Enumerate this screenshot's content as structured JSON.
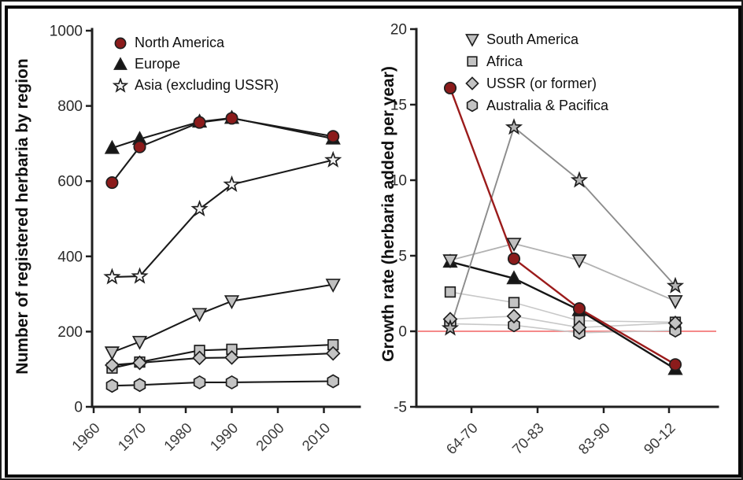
{
  "figure": {
    "background": "#ffffff",
    "frame_color": "#070707"
  },
  "colors": {
    "axis": "#1f1f1f",
    "tick_label": "#2a2a2a",
    "x_tick_label": "#3a3a3a",
    "zero_line": "#f58a8a",
    "north_america_marker": "#8b1b1b",
    "north_america_line": "#9b1b1b",
    "gray_marker": "#c3c3c3"
  },
  "chart_data": [
    {
      "type": "line",
      "panel": "left",
      "title": "",
      "xlabel": "",
      "ylabel": "Number of registered herbaria by region",
      "ylim": [
        0,
        1000
      ],
      "yticks": [
        "0",
        "200",
        "400",
        "600",
        "800",
        "1000"
      ],
      "ytick_values": [
        0,
        200,
        400,
        600,
        800,
        1000
      ],
      "xticks": [
        "1960",
        "1970",
        "1980",
        "1990",
        "2000",
        "2010"
      ],
      "xtick_values": [
        1960,
        1970,
        1980,
        1990,
        2000,
        2010
      ],
      "x": [
        1964,
        1970,
        1983,
        1990,
        2012
      ],
      "grid": false,
      "legend_position": "top-left-inside",
      "series": [
        {
          "name": "North America",
          "marker": "circle",
          "marker_fill": "#8b1b1b",
          "line_color": "#1a1a1a",
          "values": [
            596,
            691,
            756,
            767,
            719
          ]
        },
        {
          "name": "Europe",
          "marker": "triangle-up",
          "marker_fill": "#161616",
          "line_color": "#1a1a1a",
          "values": [
            688,
            712,
            758,
            768,
            713
          ]
        },
        {
          "name": "Asia (excluding USSR)",
          "marker": "star",
          "marker_fill": "#f4f4f4",
          "line_color": "#1a1a1a",
          "values": [
            345,
            347,
            526,
            591,
            656
          ]
        },
        {
          "name": "South America",
          "marker": "triangle-down",
          "marker_fill": "#bfbfbf",
          "line_color": "#1a1a1a",
          "values": [
            145,
            173,
            247,
            281,
            325
          ]
        },
        {
          "name": "Africa",
          "marker": "square",
          "marker_fill": "#c3c3c3",
          "line_color": "#1a1a1a",
          "values": [
            103,
            119,
            150,
            153,
            165
          ]
        },
        {
          "name": "USSR (or former)",
          "marker": "diamond",
          "marker_fill": "#c3c3c3",
          "line_color": "#1a1a1a",
          "values": [
            111,
            117,
            130,
            131,
            142
          ]
        },
        {
          "name": "Australia & Pacifica",
          "marker": "hexagon",
          "marker_fill": "#c3c3c3",
          "line_color": "#1a1a1a",
          "values": [
            56,
            58,
            65,
            65,
            68
          ]
        }
      ]
    },
    {
      "type": "line",
      "panel": "right",
      "title": "",
      "xlabel": "",
      "ylabel": "Growth rate (herbaria added per year)",
      "ylim": [
        -5,
        20
      ],
      "yticks": [
        "-5",
        "0",
        "5",
        "10",
        "15",
        "20"
      ],
      "ytick_values": [
        -5,
        0,
        5,
        10,
        15,
        20
      ],
      "categories": [
        "64-70",
        "70-83",
        "83-90",
        "90-12"
      ],
      "grid": false,
      "zero_line": true,
      "zero_line_color": "#f58a8a",
      "legend_position": "top-right-inside",
      "series": [
        {
          "name": "North America",
          "marker": "circle",
          "marker_fill": "#8b1b1b",
          "line_color": "#9b1b1b",
          "values": [
            16.1,
            4.8,
            1.5,
            -2.2
          ]
        },
        {
          "name": "Europe",
          "marker": "triangle-up",
          "marker_fill": "#161616",
          "line_color": "#151515",
          "values": [
            4.6,
            3.5,
            1.4,
            -2.5
          ]
        },
        {
          "name": "Asia (excluding USSR)",
          "marker": "star",
          "marker_fill": "#b5b5b5",
          "line_color": "#8c8c8c",
          "values": [
            0.2,
            13.5,
            10.0,
            3.0
          ]
        },
        {
          "name": "South America",
          "marker": "triangle-down",
          "marker_fill": "#bfbfbf",
          "line_color": "#b2b2b2",
          "values": [
            4.7,
            5.8,
            4.7,
            2.0
          ]
        },
        {
          "name": "Africa",
          "marker": "square",
          "marker_fill": "#c3c3c3",
          "line_color": "#c8c8c8",
          "values": [
            2.6,
            1.9,
            0.7,
            0.6
          ]
        },
        {
          "name": "USSR (or former)",
          "marker": "diamond",
          "marker_fill": "#c3c3c3",
          "line_color": "#c8c8c8",
          "values": [
            0.8,
            1.0,
            0.25,
            0.55
          ]
        },
        {
          "name": "Australia & Pacifica",
          "marker": "hexagon",
          "marker_fill": "#c3c3c3",
          "line_color": "#c8c8c8",
          "values": [
            0.5,
            0.4,
            -0.1,
            0.05
          ]
        }
      ]
    }
  ]
}
